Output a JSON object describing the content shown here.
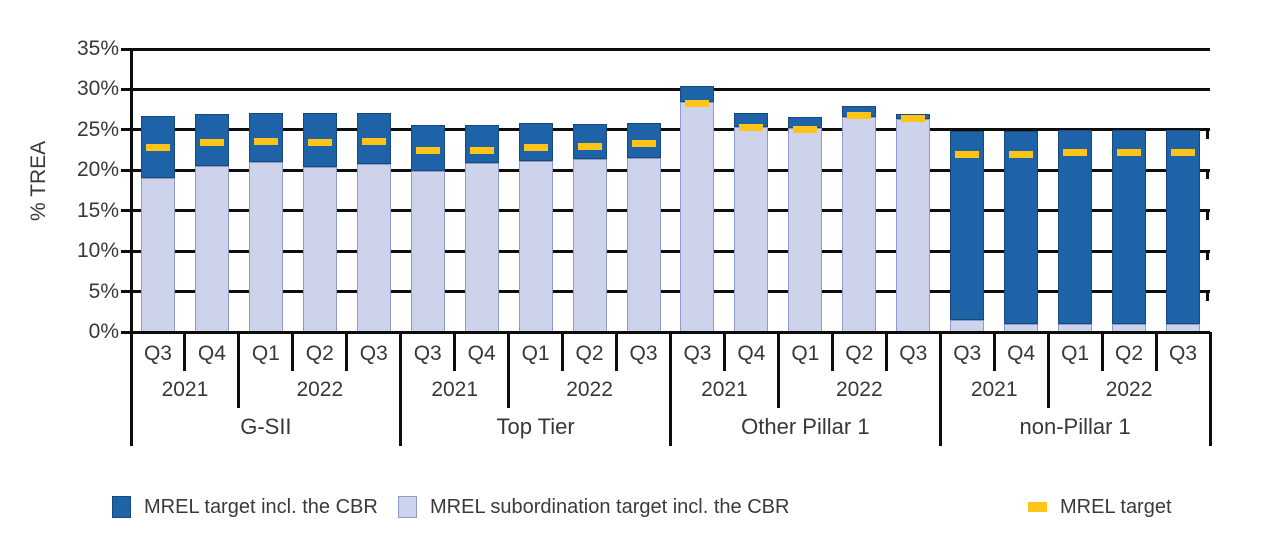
{
  "chart_data": {
    "type": "bar",
    "stacked": true,
    "title": "",
    "ylabel": "% TREA",
    "ylim": [
      0,
      35
    ],
    "yticks": [
      35,
      30,
      25,
      20,
      15,
      10,
      5,
      0
    ],
    "ytick_suffix": "%",
    "grid": "horizontal",
    "colors": {
      "mrel_target_incl_cbr": "#1E63A8",
      "mrel_subordination_target_incl_cbr": "#CDD3EA",
      "mrel_target_marker": "#FFC417",
      "dark_border": "#17497C",
      "light_border": "#8E9BC9",
      "axis_line": "#0D0D0D"
    },
    "groups": [
      {
        "label": "G-SII",
        "years": [
          {
            "label": "2021",
            "quarters": [
              {
                "label": "Q3",
                "mrel_target_incl_cbr": 26.7,
                "mrel_subordination_target_incl_cbr": 19.1,
                "mrel_target": 22.8
              },
              {
                "label": "Q4",
                "mrel_target_incl_cbr": 27.0,
                "mrel_subordination_target_incl_cbr": 20.5,
                "mrel_target": 23.4
              }
            ]
          },
          {
            "label": "2022",
            "quarters": [
              {
                "label": "Q1",
                "mrel_target_incl_cbr": 27.1,
                "mrel_subordination_target_incl_cbr": 21.0,
                "mrel_target": 23.6
              },
              {
                "label": "Q2",
                "mrel_target_incl_cbr": 27.1,
                "mrel_subordination_target_incl_cbr": 20.4,
                "mrel_target": 23.4
              },
              {
                "label": "Q3",
                "mrel_target_incl_cbr": 27.1,
                "mrel_subordination_target_incl_cbr": 20.8,
                "mrel_target": 23.6
              }
            ]
          }
        ]
      },
      {
        "label": "Top Tier",
        "years": [
          {
            "label": "2021",
            "quarters": [
              {
                "label": "Q3",
                "mrel_target_incl_cbr": 25.6,
                "mrel_subordination_target_incl_cbr": 19.9,
                "mrel_target": 22.4
              },
              {
                "label": "Q4",
                "mrel_target_incl_cbr": 25.6,
                "mrel_subordination_target_incl_cbr": 20.9,
                "mrel_target": 22.5
              }
            ]
          },
          {
            "label": "2022",
            "quarters": [
              {
                "label": "Q1",
                "mrel_target_incl_cbr": 25.8,
                "mrel_subordination_target_incl_cbr": 21.2,
                "mrel_target": 22.8
              },
              {
                "label": "Q2",
                "mrel_target_incl_cbr": 25.7,
                "mrel_subordination_target_incl_cbr": 21.4,
                "mrel_target": 22.9
              },
              {
                "label": "Q3",
                "mrel_target_incl_cbr": 25.8,
                "mrel_subordination_target_incl_cbr": 21.5,
                "mrel_target": 23.3
              }
            ]
          }
        ]
      },
      {
        "label": "Other Pillar 1",
        "years": [
          {
            "label": "2021",
            "quarters": [
              {
                "label": "Q3",
                "mrel_target_incl_cbr": 30.4,
                "mrel_subordination_target_incl_cbr": 28.4,
                "mrel_target": 28.2
              },
              {
                "label": "Q4",
                "mrel_target_incl_cbr": 27.1,
                "mrel_subordination_target_incl_cbr": 25.4,
                "mrel_target": 25.3
              }
            ]
          },
          {
            "label": "2022",
            "quarters": [
              {
                "label": "Q1",
                "mrel_target_incl_cbr": 26.6,
                "mrel_subordination_target_incl_cbr": 25.2,
                "mrel_target": 25.1
              },
              {
                "label": "Q2",
                "mrel_target_incl_cbr": 27.9,
                "mrel_subordination_target_incl_cbr": 26.6,
                "mrel_target": 26.8
              },
              {
                "label": "Q3",
                "mrel_target_incl_cbr": 27.0,
                "mrel_subordination_target_incl_cbr": 26.3,
                "mrel_target": 26.4
              }
            ]
          }
        ]
      },
      {
        "label": "non-Pillar 1",
        "years": [
          {
            "label": "2021",
            "quarters": [
              {
                "label": "Q3",
                "mrel_target_incl_cbr": 24.8,
                "mrel_subordination_target_incl_cbr": 1.5,
                "mrel_target": 21.9
              },
              {
                "label": "Q4",
                "mrel_target_incl_cbr": 24.8,
                "mrel_subordination_target_incl_cbr": 1.0,
                "mrel_target": 22.0
              }
            ]
          },
          {
            "label": "2022",
            "quarters": [
              {
                "label": "Q1",
                "mrel_target_incl_cbr": 25.0,
                "mrel_subordination_target_incl_cbr": 1.0,
                "mrel_target": 22.2
              },
              {
                "label": "Q2",
                "mrel_target_incl_cbr": 25.0,
                "mrel_subordination_target_incl_cbr": 1.0,
                "mrel_target": 22.2
              },
              {
                "label": "Q3",
                "mrel_target_incl_cbr": 25.0,
                "mrel_subordination_target_incl_cbr": 1.0,
                "mrel_target": 22.2
              }
            ]
          }
        ]
      }
    ],
    "legend": {
      "position": "bottom",
      "items": [
        {
          "label": "MREL target incl. the CBR",
          "color": "#1E63A8",
          "shape": "square"
        },
        {
          "label": "MREL subordination target incl. the CBR",
          "color": "#CDD3EA",
          "shape": "square"
        },
        {
          "label": "MREL target",
          "color": "#FFC417",
          "shape": "dash"
        }
      ]
    }
  }
}
